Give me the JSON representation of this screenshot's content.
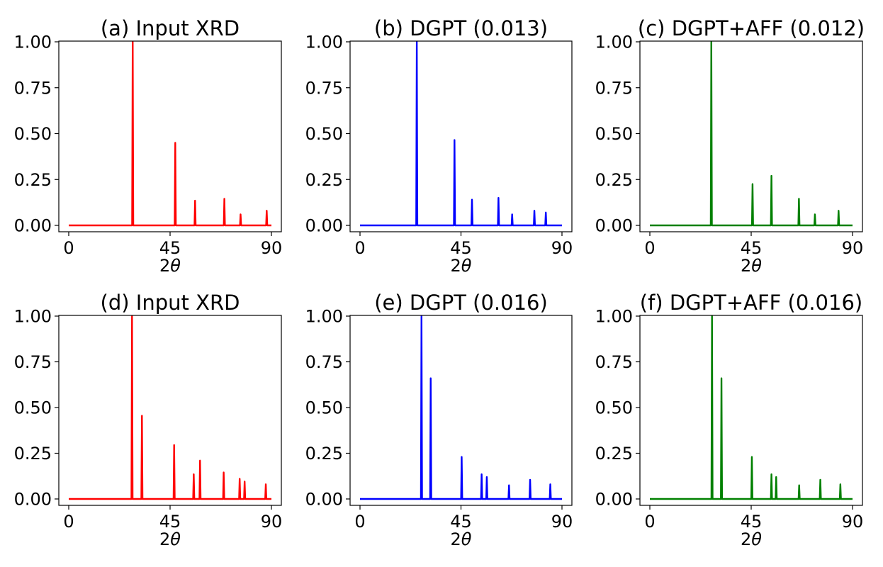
{
  "chart_data": [
    {
      "type": "line",
      "title": "(a) Input XRD",
      "xlabel": "2θ",
      "xlabel_main": "2",
      "xlabel_symbol": "θ",
      "ylabel": "",
      "xlim": [
        0,
        90
      ],
      "ylim": [
        0,
        1
      ],
      "xticks": [
        "0",
        "45",
        "90"
      ],
      "yticks": [
        "0.00",
        "0.25",
        "0.50",
        "0.75",
        "1.00"
      ],
      "color": "#ff0000",
      "series": [
        {
          "name": "Input XRD",
          "peaks": [
            [
              28.4,
              1.0
            ],
            [
              47.3,
              0.45
            ],
            [
              56.1,
              0.135
            ],
            [
              69.1,
              0.145
            ],
            [
              76.3,
              0.06
            ],
            [
              87.9,
              0.08
            ]
          ]
        }
      ]
    },
    {
      "type": "line",
      "title": "(b) DGPT (0.013)",
      "xlabel": "2θ",
      "xlabel_main": "2",
      "xlabel_symbol": "θ",
      "ylabel": "",
      "xlim": [
        0,
        90
      ],
      "ylim": [
        0,
        1
      ],
      "xticks": [
        "0",
        "45",
        "90"
      ],
      "yticks": [
        "0.00",
        "0.25",
        "0.50",
        "0.75",
        "1.00"
      ],
      "color": "#0000ff",
      "series": [
        {
          "name": "DGPT",
          "peaks": [
            [
              25.3,
              1.0
            ],
            [
              42.1,
              0.465
            ],
            [
              49.9,
              0.14
            ],
            [
              61.7,
              0.15
            ],
            [
              67.8,
              0.06
            ],
            [
              77.7,
              0.08
            ],
            [
              82.8,
              0.07
            ]
          ]
        }
      ]
    },
    {
      "type": "line",
      "title": "(c) DGPT+AFF (0.012)",
      "xlabel": "2θ",
      "xlabel_main": "2",
      "xlabel_symbol": "θ",
      "ylabel": "",
      "xlim": [
        0,
        90
      ],
      "ylim": [
        0,
        1
      ],
      "xticks": [
        "0",
        "45",
        "90"
      ],
      "yticks": [
        "0.00",
        "0.25",
        "0.50",
        "0.75",
        "1.00"
      ],
      "color": "#008000",
      "series": [
        {
          "name": "DGPT+AFF",
          "peaks": [
            [
              27.3,
              1.0
            ],
            [
              45.6,
              0.225
            ],
            [
              54.0,
              0.27
            ],
            [
              66.2,
              0.145
            ],
            [
              73.3,
              0.06
            ],
            [
              83.8,
              0.08
            ]
          ]
        }
      ]
    },
    {
      "type": "line",
      "title": "(d) Input XRD",
      "xlabel": "2θ",
      "xlabel_main": "2",
      "xlabel_symbol": "θ",
      "ylabel": "",
      "xlim": [
        0,
        90
      ],
      "ylim": [
        0,
        1
      ],
      "xticks": [
        "0",
        "45",
        "90"
      ],
      "yticks": [
        "0.00",
        "0.25",
        "0.50",
        "0.75",
        "1.00"
      ],
      "color": "#ff0000",
      "series": [
        {
          "name": "Input XRD",
          "peaks": [
            [
              28.1,
              1.0
            ],
            [
              32.5,
              0.455
            ],
            [
              46.8,
              0.295
            ],
            [
              55.5,
              0.135
            ],
            [
              58.3,
              0.21
            ],
            [
              68.8,
              0.145
            ],
            [
              75.9,
              0.11
            ],
            [
              78.1,
              0.095
            ],
            [
              87.5,
              0.08
            ]
          ]
        }
      ]
    },
    {
      "type": "line",
      "title": "(e) DGPT (0.016)",
      "xlabel": "2θ",
      "xlabel_main": "2",
      "xlabel_symbol": "θ",
      "ylabel": "",
      "xlim": [
        0,
        90
      ],
      "ylim": [
        0,
        1
      ],
      "xticks": [
        "0",
        "45",
        "90"
      ],
      "yticks": [
        "0.00",
        "0.25",
        "0.50",
        "0.75",
        "1.00"
      ],
      "color": "#0000ff",
      "series": [
        {
          "name": "DGPT",
          "peaks": [
            [
              27.4,
              1.0
            ],
            [
              31.5,
              0.66
            ],
            [
              45.3,
              0.23
            ],
            [
              54.2,
              0.135
            ],
            [
              56.5,
              0.12
            ],
            [
              66.4,
              0.075
            ],
            [
              75.8,
              0.105
            ],
            [
              84.8,
              0.08
            ]
          ]
        }
      ]
    },
    {
      "type": "line",
      "title": "(f) DGPT+AFF (0.016)",
      "xlabel": "2θ",
      "xlabel_main": "2",
      "xlabel_symbol": "θ",
      "ylabel": "",
      "xlim": [
        0,
        90
      ],
      "ylim": [
        0,
        1
      ],
      "xticks": [
        "0",
        "45",
        "90"
      ],
      "yticks": [
        "0.00",
        "0.25",
        "0.50",
        "0.75",
        "1.00"
      ],
      "color": "#008000",
      "series": [
        {
          "name": "DGPT+AFF",
          "peaks": [
            [
              27.6,
              1.0
            ],
            [
              31.8,
              0.66
            ],
            [
              45.3,
              0.23
            ],
            [
              54.0,
              0.135
            ],
            [
              56.1,
              0.12
            ],
            [
              66.3,
              0.075
            ],
            [
              75.7,
              0.105
            ],
            [
              84.6,
              0.08
            ]
          ]
        }
      ]
    }
  ]
}
